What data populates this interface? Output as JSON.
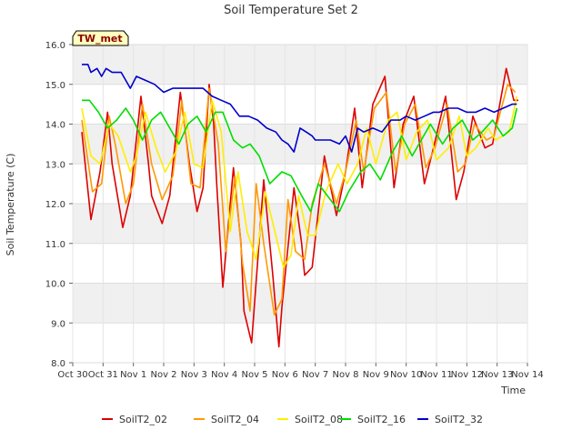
{
  "chart_data": {
    "type": "line",
    "title": "Soil Temperature Set 2",
    "xlabel": "Time",
    "ylabel": "Soil Temperature (C)",
    "ylim": [
      8.0,
      16.0
    ],
    "xlim": [
      0,
      15
    ],
    "y_ticks": [
      "8.0",
      "9.0",
      "10.0",
      "11.0",
      "12.0",
      "13.0",
      "14.0",
      "15.0",
      "16.0"
    ],
    "x_ticks": [
      "Oct 30",
      "Oct 31",
      "Nov 1",
      "Nov 2",
      "Nov 3",
      "Nov 4",
      "Nov 5",
      "Nov 6",
      "Nov 7",
      "Nov 8",
      "Nov 9",
      "Nov 10",
      "Nov 11",
      "Nov 12",
      "Nov 13",
      "Nov 14"
    ],
    "annotation": "TW_met",
    "grid": true,
    "legend_position": "bottom",
    "series": [
      {
        "name": "SoilT2_02",
        "color": "#dd0000",
        "x": [
          0.3,
          0.6,
          0.9,
          1.15,
          1.3,
          1.65,
          1.9,
          2.25,
          2.5,
          2.6,
          2.95,
          3.2,
          3.55,
          3.85,
          4.1,
          4.3,
          4.5,
          4.65,
          4.75,
          4.95,
          5.3,
          5.55,
          5.65,
          5.9,
          6.3,
          6.6,
          6.8,
          6.9,
          7.3,
          7.55,
          7.65,
          7.9,
          8.3,
          8.7,
          9.0,
          9.3,
          9.55,
          9.9,
          10.3,
          10.6,
          10.9,
          11.25,
          11.6,
          11.9,
          12.3,
          12.65,
          12.9,
          13.2,
          13.6,
          13.85,
          14.3,
          14.55,
          14.7
        ],
        "values": [
          13.8,
          11.6,
          12.8,
          14.3,
          13.0,
          11.4,
          12.2,
          14.7,
          13.0,
          12.2,
          11.5,
          12.2,
          14.8,
          13.0,
          11.8,
          12.4,
          15.0,
          14.0,
          12.5,
          9.9,
          12.9,
          11.0,
          9.3,
          8.5,
          12.6,
          10.2,
          8.4,
          9.4,
          12.4,
          11.0,
          10.2,
          10.4,
          13.2,
          11.7,
          12.8,
          14.4,
          12.4,
          14.5,
          15.2,
          12.4,
          14.0,
          14.7,
          12.5,
          13.4,
          14.7,
          12.1,
          12.8,
          14.2,
          13.4,
          13.5,
          15.4,
          14.6,
          14.6
        ]
      },
      {
        "name": "SoilT2_04",
        "color": "#ff9900",
        "x": [
          0.3,
          0.65,
          0.95,
          1.2,
          1.4,
          1.75,
          2.0,
          2.3,
          2.6,
          2.95,
          3.3,
          3.6,
          3.9,
          4.2,
          4.5,
          4.8,
          5.05,
          5.35,
          5.6,
          5.85,
          6.05,
          6.3,
          6.65,
          6.9,
          7.1,
          7.35,
          7.65,
          7.9,
          8.3,
          8.7,
          9.0,
          9.35,
          9.6,
          9.95,
          10.35,
          10.65,
          10.95,
          11.3,
          11.65,
          11.95,
          12.35,
          12.7,
          12.95,
          13.25,
          13.65,
          13.9,
          14.35,
          14.6
        ],
        "values": [
          14.1,
          12.3,
          12.5,
          14.2,
          13.5,
          12.0,
          12.5,
          14.5,
          13.0,
          12.1,
          12.7,
          14.6,
          12.5,
          12.4,
          14.9,
          13.5,
          10.8,
          12.7,
          10.5,
          9.3,
          12.5,
          11.0,
          9.2,
          9.6,
          12.1,
          10.8,
          10.6,
          12.0,
          13.0,
          12.0,
          12.8,
          14.1,
          12.8,
          14.4,
          14.8,
          12.8,
          14.0,
          14.5,
          12.9,
          13.4,
          14.5,
          12.8,
          13.0,
          14.0,
          13.6,
          13.7,
          15.0,
          14.8
        ]
      },
      {
        "name": "SoilT2_08",
        "color": "#ffee00",
        "x": [
          0.3,
          0.6,
          0.9,
          1.2,
          1.5,
          1.9,
          2.1,
          2.4,
          2.75,
          3.05,
          3.4,
          3.7,
          4.0,
          4.3,
          4.6,
          4.9,
          5.2,
          5.45,
          5.75,
          6.05,
          6.35,
          6.7,
          6.95,
          7.2,
          7.45,
          7.75,
          8.0,
          8.35,
          8.75,
          9.05,
          9.4,
          9.7,
          10.0,
          10.4,
          10.7,
          11.0,
          11.35,
          11.7,
          12.0,
          12.4,
          12.75,
          13.0,
          13.3,
          13.7,
          13.95,
          14.4,
          14.65
        ],
        "values": [
          14.4,
          13.2,
          13.0,
          14.0,
          13.7,
          12.8,
          13.2,
          14.3,
          13.4,
          12.8,
          13.3,
          14.3,
          13.0,
          12.9,
          14.6,
          13.8,
          11.3,
          12.8,
          11.3,
          10.6,
          12.3,
          11.2,
          10.4,
          10.7,
          12.2,
          11.2,
          11.2,
          12.3,
          13.0,
          12.5,
          13.0,
          13.9,
          13.0,
          14.1,
          14.3,
          13.1,
          13.8,
          14.1,
          13.1,
          13.4,
          14.2,
          13.2,
          13.4,
          13.9,
          13.6,
          13.8,
          14.7
        ]
      },
      {
        "name": "SoilT2_16",
        "color": "#00dd00",
        "x": [
          0.3,
          0.55,
          0.85,
          1.15,
          1.45,
          1.75,
          2.0,
          2.3,
          2.6,
          2.9,
          3.2,
          3.5,
          3.8,
          4.1,
          4.4,
          4.7,
          4.95,
          5.3,
          5.6,
          5.85,
          6.15,
          6.5,
          6.9,
          7.2,
          7.55,
          7.85,
          8.1,
          8.5,
          8.8,
          9.1,
          9.5,
          9.8,
          10.15,
          10.55,
          10.85,
          11.2,
          11.5,
          11.8,
          12.2,
          12.55,
          12.85,
          13.2,
          13.5,
          13.85,
          14.2,
          14.5,
          14.65
        ],
        "values": [
          14.6,
          14.6,
          14.3,
          13.9,
          14.1,
          14.4,
          14.1,
          13.6,
          14.1,
          14.3,
          13.9,
          13.5,
          14.0,
          14.2,
          13.8,
          14.3,
          14.3,
          13.6,
          13.4,
          13.5,
          13.2,
          12.5,
          12.8,
          12.7,
          12.2,
          11.8,
          12.5,
          12.1,
          11.8,
          12.3,
          12.8,
          13.0,
          12.6,
          13.3,
          13.7,
          13.2,
          13.6,
          14.0,
          13.5,
          13.9,
          14.1,
          13.6,
          13.8,
          14.1,
          13.7,
          13.9,
          14.4
        ]
      },
      {
        "name": "SoilT2_32",
        "color": "#0000cc",
        "x": [
          0.3,
          0.5,
          0.6,
          0.8,
          0.95,
          1.1,
          1.3,
          1.6,
          1.9,
          2.1,
          2.4,
          2.7,
          3.0,
          3.3,
          3.7,
          4.0,
          4.3,
          4.6,
          4.9,
          5.2,
          5.5,
          5.8,
          6.1,
          6.4,
          6.7,
          6.9,
          7.1,
          7.3,
          7.5,
          7.7,
          7.9,
          8.0,
          8.2,
          8.5,
          8.8,
          9.0,
          9.2,
          9.4,
          9.6,
          9.9,
          10.2,
          10.5,
          10.8,
          11.0,
          11.3,
          11.6,
          11.9,
          12.1,
          12.4,
          12.7,
          13.0,
          13.3,
          13.6,
          13.9,
          14.2,
          14.5,
          14.65
        ],
        "values": [
          15.5,
          15.5,
          15.3,
          15.4,
          15.2,
          15.4,
          15.3,
          15.3,
          14.9,
          15.2,
          15.1,
          15.0,
          14.8,
          14.9,
          14.9,
          14.9,
          14.9,
          14.7,
          14.6,
          14.5,
          14.2,
          14.2,
          14.1,
          13.9,
          13.8,
          13.6,
          13.5,
          13.3,
          13.9,
          13.8,
          13.7,
          13.6,
          13.6,
          13.6,
          13.5,
          13.7,
          13.3,
          13.9,
          13.8,
          13.9,
          13.8,
          14.1,
          14.1,
          14.2,
          14.1,
          14.2,
          14.3,
          14.3,
          14.4,
          14.4,
          14.3,
          14.3,
          14.4,
          14.3,
          14.4,
          14.5,
          14.5
        ]
      }
    ]
  }
}
